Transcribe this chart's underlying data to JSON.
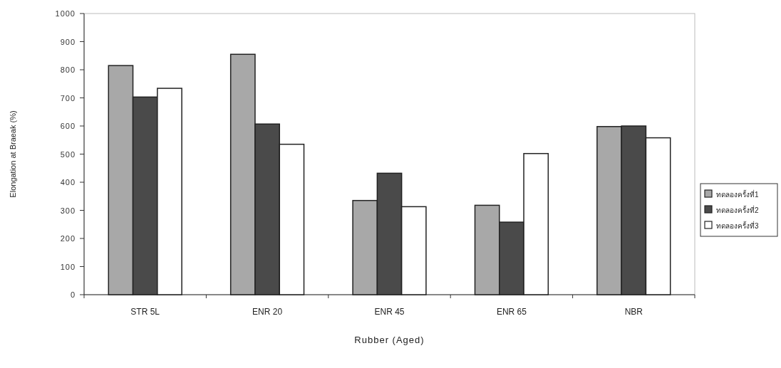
{
  "chart_data": {
    "type": "bar",
    "xlabel": "Rubber (Aged)",
    "ylabel": "Elongation at Braeak (%)",
    "categories": [
      "STR 5L",
      "ENR 20",
      "ENR 45",
      "ENR 65",
      "NBR"
    ],
    "series": [
      {
        "name": "ทดลองครั้งที่1",
        "color": "#a8a8a8",
        "values": [
          815,
          855,
          335,
          318,
          598
        ]
      },
      {
        "name": "ทดลองครั้งที่2",
        "color": "#4a4a4a",
        "values": [
          703,
          607,
          432,
          258,
          600
        ]
      },
      {
        "name": "ทดลองครั้งที่3",
        "color": "#ffffff",
        "values": [
          734,
          535,
          313,
          502,
          558
        ]
      }
    ],
    "ylim": [
      0,
      1000
    ],
    "yticks": [
      0,
      100,
      200,
      300,
      400,
      500,
      600,
      700,
      800,
      900,
      1000
    ],
    "grid": false,
    "legend": "right"
  }
}
